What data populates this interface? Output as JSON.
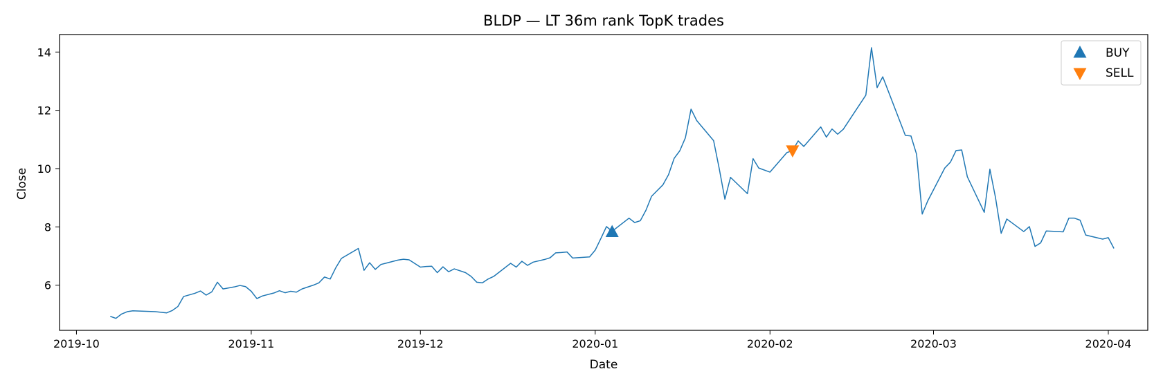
{
  "chart_data": {
    "type": "line",
    "title": "BLDP — LT 36m rank TopK trades",
    "xlabel": "Date",
    "ylabel": "Close",
    "x_axis": "date",
    "xlim": [
      "2019-09-28",
      "2020-04-08"
    ],
    "ylim": [
      4.45,
      14.6
    ],
    "xticks": [
      "2019-10-01",
      "2019-11-01",
      "2019-12-01",
      "2020-01-01",
      "2020-02-01",
      "2020-03-01",
      "2020-04-01"
    ],
    "xtick_labels": [
      "2019-10",
      "2019-11",
      "2019-12",
      "2020-01",
      "2020-02",
      "2020-03",
      "2020-04"
    ],
    "yticks": [
      6,
      8,
      10,
      12,
      14
    ],
    "ytick_labels": [
      "6",
      "8",
      "10",
      "12",
      "14"
    ],
    "grid": false,
    "legend_position": "top-right",
    "series": [
      {
        "color": "#1f77b4",
        "points": [
          [
            "2019-10-07",
            4.93
          ],
          [
            "2019-10-08",
            4.86
          ],
          [
            "2019-10-09",
            5.01
          ],
          [
            "2019-10-10",
            5.09
          ],
          [
            "2019-10-11",
            5.12
          ],
          [
            "2019-10-15",
            5.09
          ],
          [
            "2019-10-16",
            5.07
          ],
          [
            "2019-10-17",
            5.05
          ],
          [
            "2019-10-18",
            5.13
          ],
          [
            "2019-10-19",
            5.27
          ],
          [
            "2019-10-20",
            5.61
          ],
          [
            "2019-10-22",
            5.72
          ],
          [
            "2019-10-23",
            5.8
          ],
          [
            "2019-10-24",
            5.66
          ],
          [
            "2019-10-25",
            5.77
          ],
          [
            "2019-10-26",
            6.1
          ],
          [
            "2019-10-27",
            5.87
          ],
          [
            "2019-10-29",
            5.94
          ],
          [
            "2019-10-30",
            5.99
          ],
          [
            "2019-10-31",
            5.95
          ],
          [
            "2019-11-01",
            5.79
          ],
          [
            "2019-11-02",
            5.54
          ],
          [
            "2019-11-03",
            5.63
          ],
          [
            "2019-11-05",
            5.73
          ],
          [
            "2019-11-06",
            5.81
          ],
          [
            "2019-11-07",
            5.74
          ],
          [
            "2019-11-08",
            5.79
          ],
          [
            "2019-11-09",
            5.76
          ],
          [
            "2019-11-10",
            5.87
          ],
          [
            "2019-11-12",
            6.0
          ],
          [
            "2019-11-13",
            6.08
          ],
          [
            "2019-11-14",
            6.28
          ],
          [
            "2019-11-15",
            6.21
          ],
          [
            "2019-11-16",
            6.6
          ],
          [
            "2019-11-17",
            6.92
          ],
          [
            "2019-11-20",
            7.26
          ],
          [
            "2019-11-21",
            6.51
          ],
          [
            "2019-11-22",
            6.77
          ],
          [
            "2019-11-23",
            6.54
          ],
          [
            "2019-11-24",
            6.71
          ],
          [
            "2019-11-25",
            6.76
          ],
          [
            "2019-11-27",
            6.86
          ],
          [
            "2019-11-28",
            6.89
          ],
          [
            "2019-11-29",
            6.87
          ],
          [
            "2019-12-01",
            6.62
          ],
          [
            "2019-12-02",
            6.64
          ],
          [
            "2019-12-03",
            6.65
          ],
          [
            "2019-12-04",
            6.43
          ],
          [
            "2019-12-05",
            6.63
          ],
          [
            "2019-12-06",
            6.46
          ],
          [
            "2019-12-07",
            6.56
          ],
          [
            "2019-12-09",
            6.43
          ],
          [
            "2019-12-10",
            6.3
          ],
          [
            "2019-12-11",
            6.1
          ],
          [
            "2019-12-12",
            6.08
          ],
          [
            "2019-12-13",
            6.21
          ],
          [
            "2019-12-14",
            6.3
          ],
          [
            "2019-12-17",
            6.75
          ],
          [
            "2019-12-18",
            6.62
          ],
          [
            "2019-12-19",
            6.82
          ],
          [
            "2019-12-20",
            6.68
          ],
          [
            "2019-12-21",
            6.79
          ],
          [
            "2019-12-23",
            6.88
          ],
          [
            "2019-12-24",
            6.94
          ],
          [
            "2019-12-25",
            7.11
          ],
          [
            "2019-12-26",
            7.12
          ],
          [
            "2019-12-27",
            7.14
          ],
          [
            "2019-12-28",
            6.93
          ],
          [
            "2019-12-31",
            6.97
          ],
          [
            "2020-01-01",
            7.2
          ],
          [
            "2020-01-02",
            7.6
          ],
          [
            "2020-01-03",
            8.01
          ],
          [
            "2020-01-04",
            7.85
          ],
          [
            "2020-01-07",
            8.3
          ],
          [
            "2020-01-08",
            8.15
          ],
          [
            "2020-01-09",
            8.21
          ],
          [
            "2020-01-10",
            8.57
          ],
          [
            "2020-01-11",
            9.05
          ],
          [
            "2020-01-13",
            9.44
          ],
          [
            "2020-01-14",
            9.79
          ],
          [
            "2020-01-15",
            10.35
          ],
          [
            "2020-01-16",
            10.61
          ],
          [
            "2020-01-17",
            11.06
          ],
          [
            "2020-01-18",
            12.04
          ],
          [
            "2020-01-19",
            11.65
          ],
          [
            "2020-01-22",
            10.96
          ],
          [
            "2020-01-23",
            10.0
          ],
          [
            "2020-01-24",
            8.95
          ],
          [
            "2020-01-25",
            9.7
          ],
          [
            "2020-01-28",
            9.14
          ],
          [
            "2020-01-29",
            10.34
          ],
          [
            "2020-01-30",
            10.02
          ],
          [
            "2020-02-01",
            9.88
          ],
          [
            "2020-02-04",
            10.55
          ],
          [
            "2020-02-05",
            10.62
          ],
          [
            "2020-02-06",
            10.95
          ],
          [
            "2020-02-07",
            10.76
          ],
          [
            "2020-02-10",
            11.43
          ],
          [
            "2020-02-11",
            11.08
          ],
          [
            "2020-02-12",
            11.36
          ],
          [
            "2020-02-13",
            11.18
          ],
          [
            "2020-02-14",
            11.35
          ],
          [
            "2020-02-18",
            12.52
          ],
          [
            "2020-02-19",
            14.15
          ],
          [
            "2020-02-20",
            12.78
          ],
          [
            "2020-02-21",
            13.15
          ],
          [
            "2020-02-25",
            11.14
          ],
          [
            "2020-02-26",
            11.12
          ],
          [
            "2020-02-27",
            10.49
          ],
          [
            "2020-02-28",
            8.44
          ],
          [
            "2020-02-29",
            8.9
          ],
          [
            "2020-03-03",
            10.02
          ],
          [
            "2020-03-04",
            10.22
          ],
          [
            "2020-03-05",
            10.62
          ],
          [
            "2020-03-06",
            10.64
          ],
          [
            "2020-03-07",
            9.72
          ],
          [
            "2020-03-10",
            8.5
          ],
          [
            "2020-03-11",
            9.98
          ],
          [
            "2020-03-12",
            9.0
          ],
          [
            "2020-03-13",
            7.78
          ],
          [
            "2020-03-14",
            8.27
          ],
          [
            "2020-03-17",
            7.84
          ],
          [
            "2020-03-18",
            8.01
          ],
          [
            "2020-03-19",
            7.33
          ],
          [
            "2020-03-20",
            7.45
          ],
          [
            "2020-03-21",
            7.86
          ],
          [
            "2020-03-24",
            7.83
          ],
          [
            "2020-03-25",
            8.3
          ],
          [
            "2020-03-26",
            8.3
          ],
          [
            "2020-03-27",
            8.23
          ],
          [
            "2020-03-28",
            7.72
          ],
          [
            "2020-03-31",
            7.58
          ],
          [
            "2020-04-01",
            7.63
          ],
          [
            "2020-04-02",
            7.26
          ]
        ]
      }
    ],
    "markers": [
      {
        "label": "BUY",
        "date": "2020-01-04",
        "value": 7.83,
        "shape": "triangle-up",
        "color": "#1f77b4"
      },
      {
        "label": "SELL",
        "date": "2020-02-05",
        "value": 10.62,
        "shape": "triangle-down",
        "color": "#ff7f0e"
      }
    ]
  }
}
